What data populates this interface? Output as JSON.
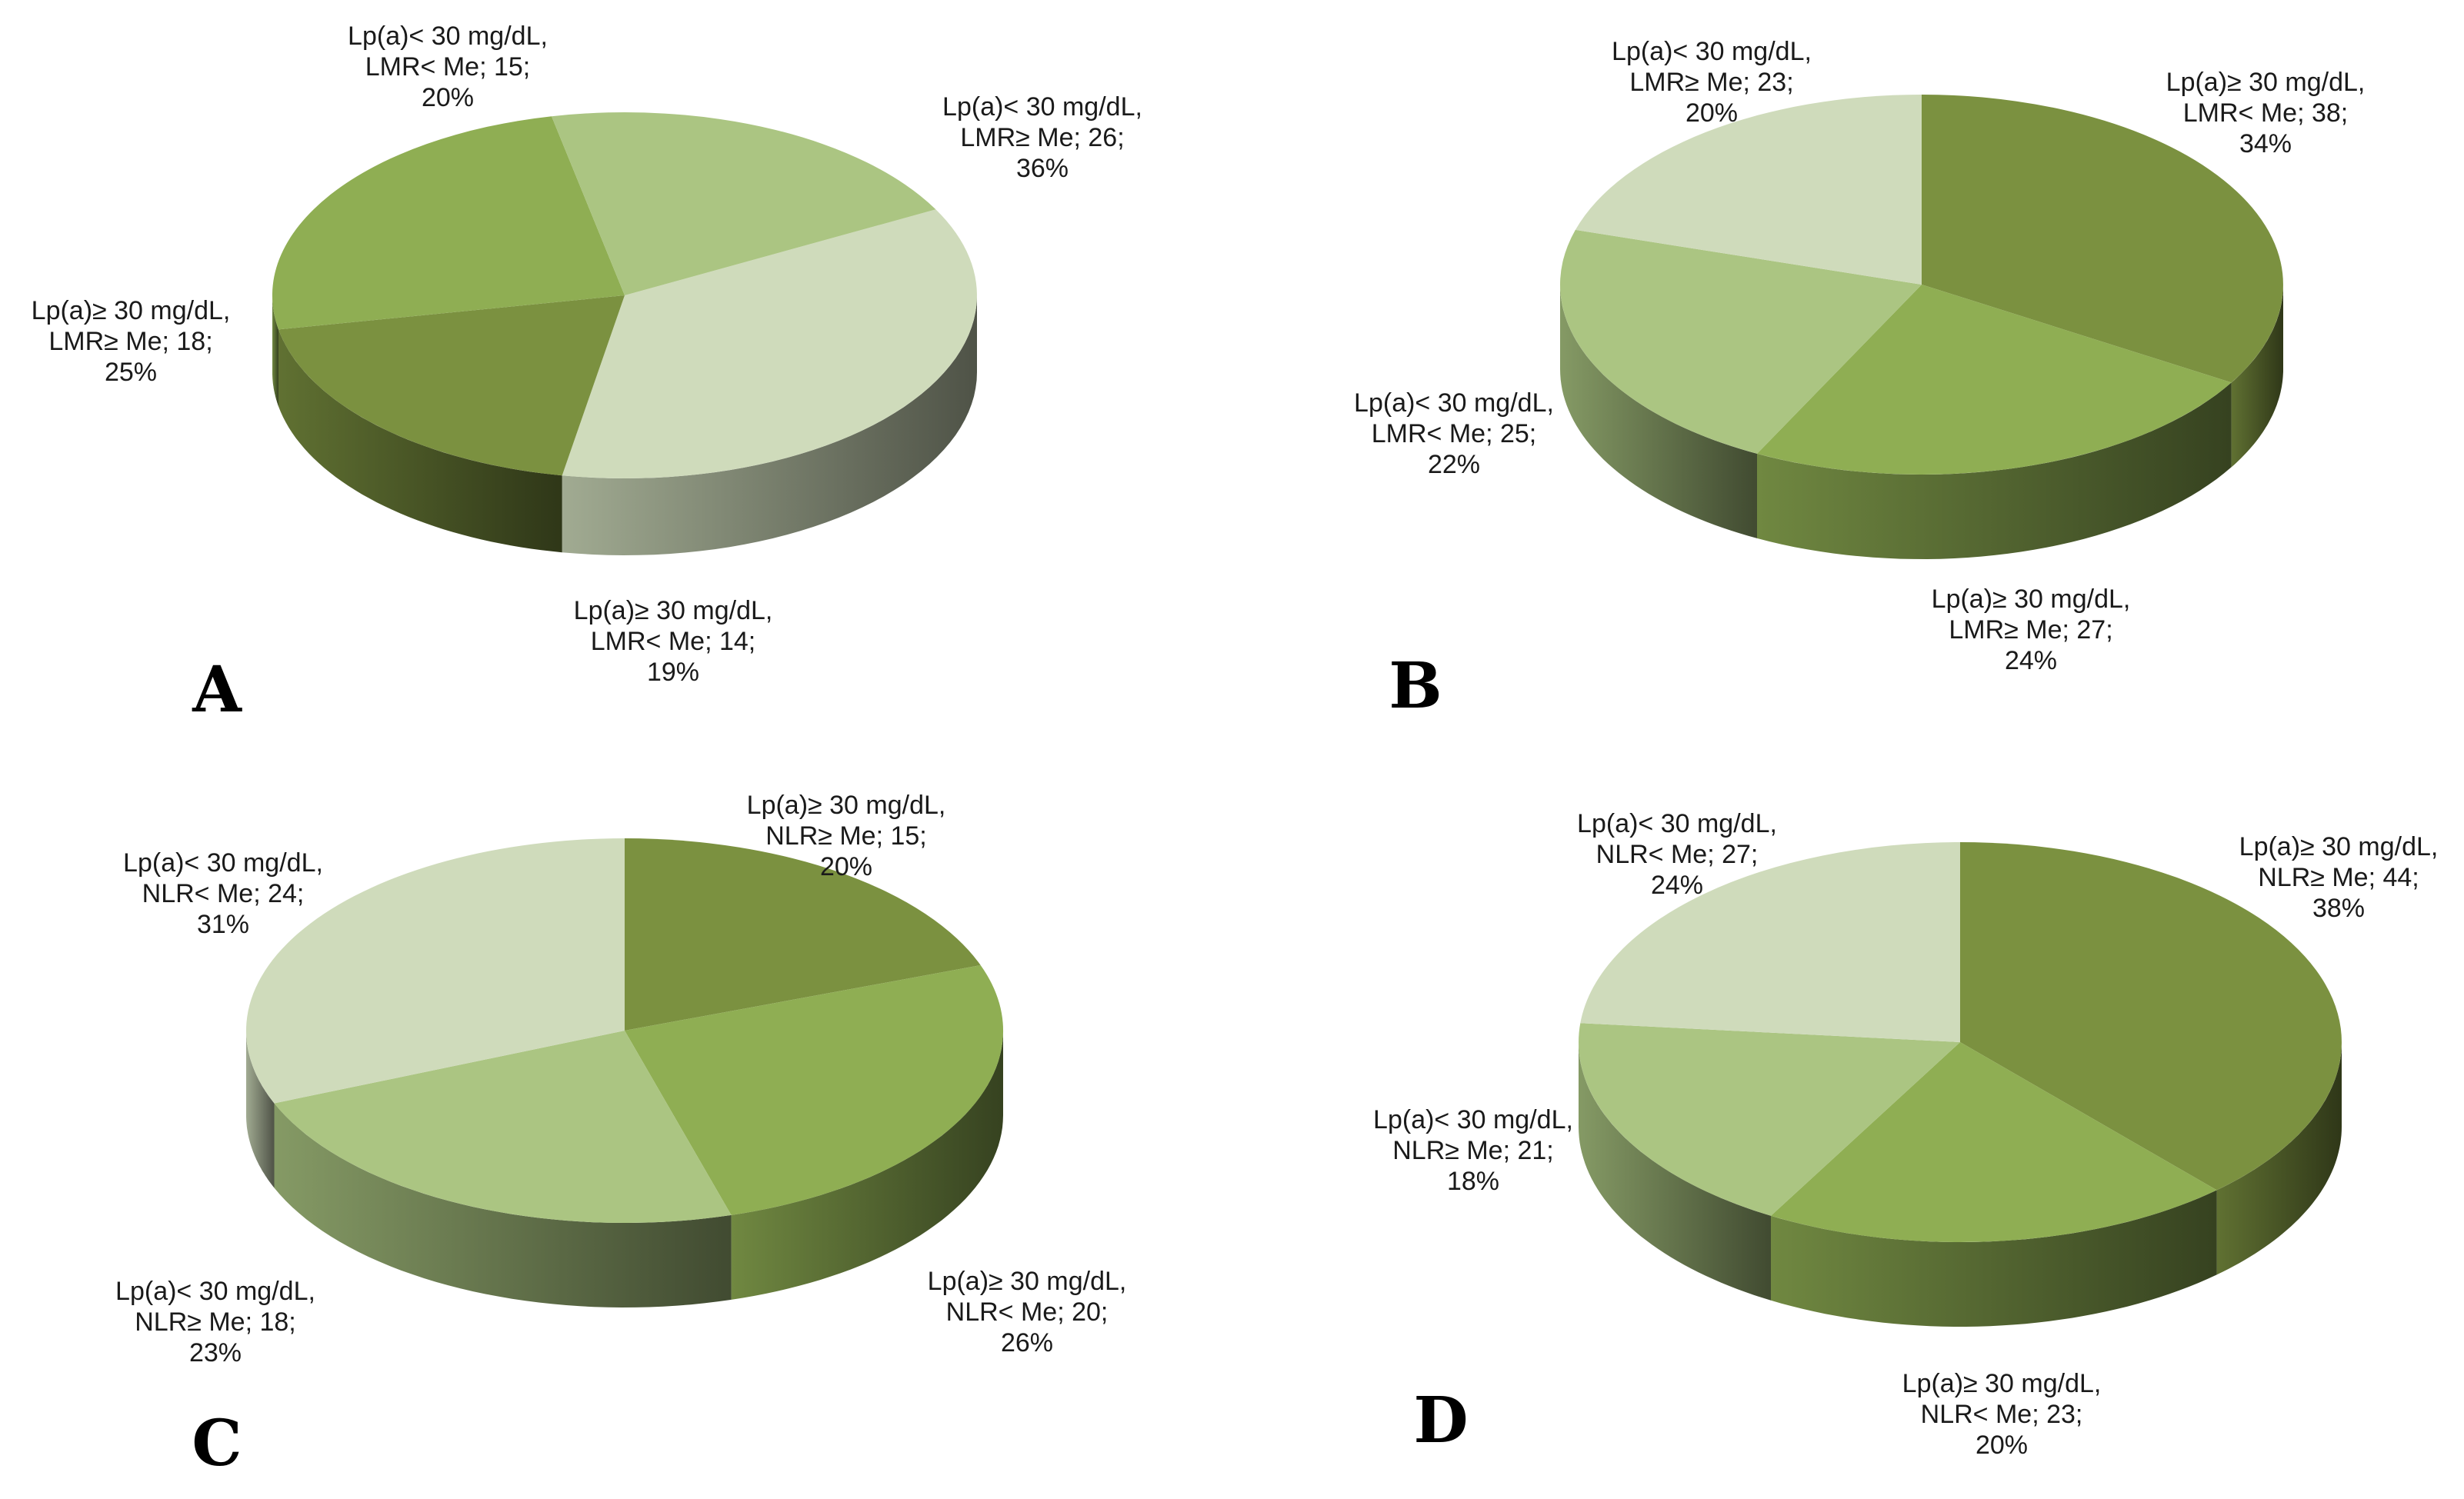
{
  "colors": {
    "dark_green": "#7b9140",
    "mid_green": "#8fae53",
    "light_green": "#abc582",
    "pale_green": "#cfdbbb",
    "label_text": "#1a1a1a",
    "panel_letter": "#000000"
  },
  "chart_data": [
    {
      "type": "pie",
      "panel": "A",
      "style": "3d",
      "slices": [
        {
          "label_lines": [
            "Lp(a)< 30 mg/dL,",
            "LMR≥ Me; 26;",
            "36%"
          ],
          "count": 26,
          "percent": 36,
          "color": "#cfdbbb"
        },
        {
          "label_lines": [
            "Lp(a)≥ 30 mg/dL,",
            "LMR< Me; 14;",
            "19%"
          ],
          "count": 14,
          "percent": 19,
          "color": "#7b9140"
        },
        {
          "label_lines": [
            "Lp(a)≥ 30 mg/dL,",
            "LMR≥ Me; 18;",
            "25%"
          ],
          "count": 18,
          "percent": 25,
          "color": "#8fae53"
        },
        {
          "label_lines": [
            "Lp(a)< 30 mg/dL,",
            "LMR< Me; 15;",
            "20%"
          ],
          "count": 15,
          "percent": 20,
          "color": "#abc582"
        }
      ]
    },
    {
      "type": "pie",
      "panel": "B",
      "style": "3d",
      "slices": [
        {
          "label_lines": [
            "Lp(a)≥ 30 mg/dL,",
            "LMR< Me; 38;",
            "34%"
          ],
          "count": 38,
          "percent": 34,
          "color": "#7b9140"
        },
        {
          "label_lines": [
            "Lp(a)≥ 30 mg/dL,",
            "LMR≥ Me; 27;",
            "24%"
          ],
          "count": 27,
          "percent": 24,
          "color": "#8fae53"
        },
        {
          "label_lines": [
            "Lp(a)< 30 mg/dL,",
            "LMR< Me; 25;",
            "22%"
          ],
          "count": 25,
          "percent": 22,
          "color": "#abc582"
        },
        {
          "label_lines": [
            "Lp(a)< 30 mg/dL,",
            "LMR≥ Me; 23;",
            "20%"
          ],
          "count": 23,
          "percent": 20,
          "color": "#cfdbbb"
        }
      ]
    },
    {
      "type": "pie",
      "panel": "C",
      "style": "3d",
      "slices": [
        {
          "label_lines": [
            "Lp(a)≥ 30 mg/dL,",
            "NLR≥ Me; 15;",
            "20%"
          ],
          "count": 15,
          "percent": 20,
          "color": "#7b9140"
        },
        {
          "label_lines": [
            "Lp(a)≥ 30 mg/dL,",
            "NLR< Me; 20;",
            "26%"
          ],
          "count": 20,
          "percent": 26,
          "color": "#8fae53"
        },
        {
          "label_lines": [
            "Lp(a)< 30 mg/dL,",
            "NLR≥ Me; 18;",
            "23%"
          ],
          "count": 18,
          "percent": 23,
          "color": "#abc582"
        },
        {
          "label_lines": [
            "Lp(a)< 30 mg/dL,",
            "NLR< Me; 24;",
            "31%"
          ],
          "count": 24,
          "percent": 31,
          "color": "#cfdbbb"
        }
      ]
    },
    {
      "type": "pie",
      "panel": "D",
      "style": "3d",
      "slices": [
        {
          "label_lines": [
            "Lp(a)≥ 30 mg/dL,",
            "NLR≥ Me; 44;",
            "38%"
          ],
          "count": 44,
          "percent": 38,
          "color": "#7b9140"
        },
        {
          "label_lines": [
            "Lp(a)≥ 30 mg/dL,",
            "NLR< Me; 23;",
            "20%"
          ],
          "count": 23,
          "percent": 20,
          "color": "#8fae53"
        },
        {
          "label_lines": [
            "Lp(a)< 30 mg/dL,",
            "NLR≥ Me; 21;",
            "18%"
          ],
          "count": 21,
          "percent": 18,
          "color": "#abc582"
        },
        {
          "label_lines": [
            "Lp(a)< 30 mg/dL,",
            "NLR< Me; 27;",
            "24%"
          ],
          "count": 27,
          "percent": 24,
          "color": "#cfdbbb"
        }
      ]
    }
  ]
}
